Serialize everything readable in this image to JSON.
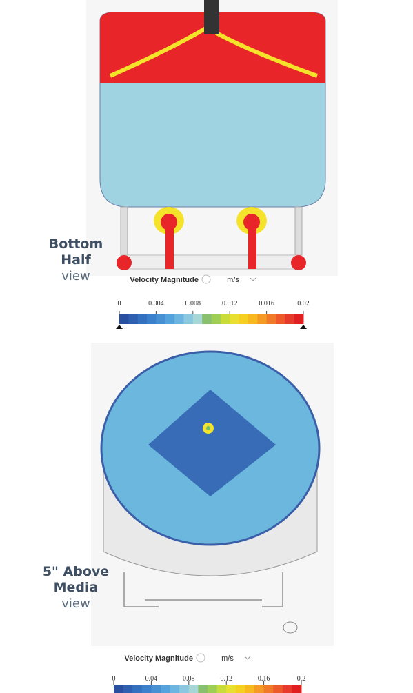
{
  "panels": [
    {
      "label_lines": [
        "Bottom",
        "Half"
      ],
      "label_sub": "view",
      "legend": {
        "title": "Velocity Magnitude",
        "unit": "m/s",
        "ticks": [
          0,
          0.004,
          0.008,
          0.012,
          0.016,
          0.02
        ]
      }
    },
    {
      "label_lines": [
        "5\" Above",
        "Media"
      ],
      "label_sub": "view",
      "legend": {
        "title": "Velocity Magnitude",
        "unit": "m/s",
        "ticks": [
          0,
          0.04,
          0.08,
          0.12,
          0.16,
          0.2
        ]
      }
    }
  ],
  "colorbar_colors": [
    "#2b4fa0",
    "#2f5fb0",
    "#3470c0",
    "#3a80cc",
    "#4790d4",
    "#55a3dc",
    "#6cb5e0",
    "#8cc7e0",
    "#a6d6d6",
    "#88c070",
    "#9fce55",
    "#c8dc3c",
    "#e8e030",
    "#f5d020",
    "#f8b820",
    "#f59a25",
    "#f07a28",
    "#ec5a2a",
    "#e63a2a",
    "#e02020"
  ]
}
